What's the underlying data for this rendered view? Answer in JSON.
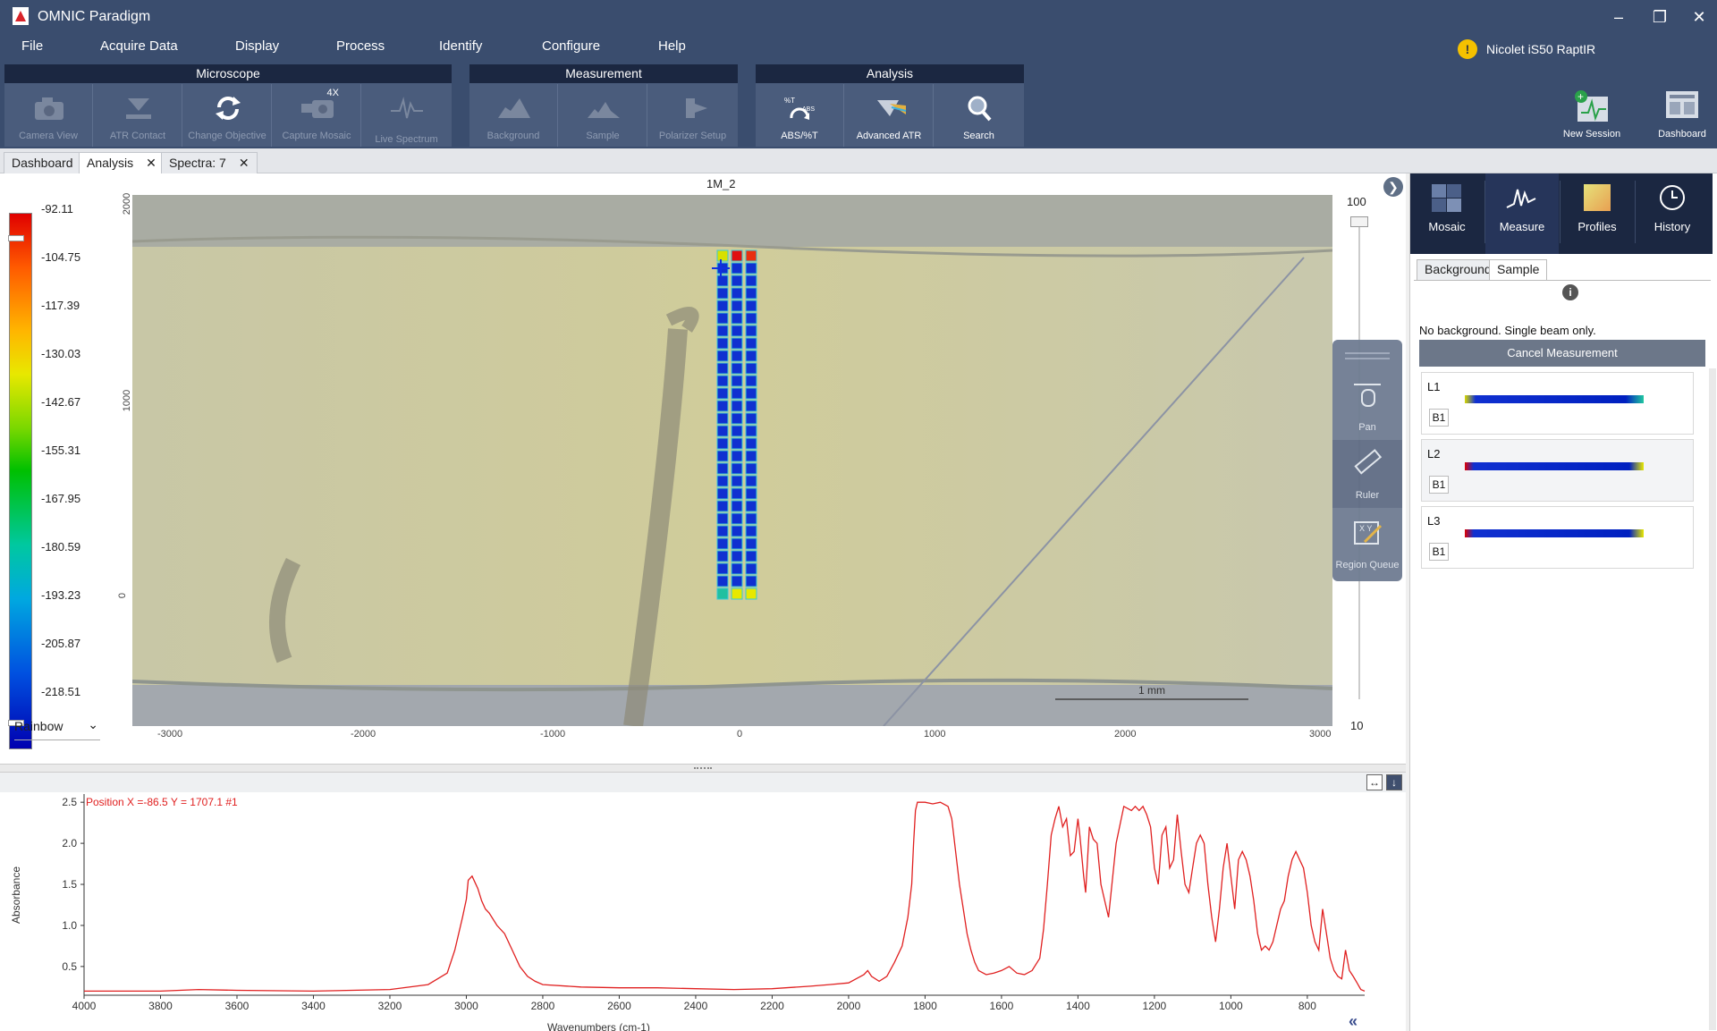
{
  "window": {
    "title": "OMNIC Paradigm"
  },
  "menu": [
    "File",
    "Acquire Data",
    "Display",
    "Process",
    "Identify",
    "Configure",
    "Help"
  ],
  "instrument": {
    "status_icon": "warning-icon",
    "name": "Nicolet iS50 RaptIR"
  },
  "toolbar": {
    "microscope": {
      "title": "Microscope",
      "buttons": [
        "Camera View",
        "ATR Contact",
        "Change Objective",
        "Capture Mosaic",
        "Live Spectrum"
      ],
      "capture_badge": "4X"
    },
    "measurement": {
      "title": "Measurement",
      "buttons": [
        "Background",
        "Sample",
        "Polarizer Setup"
      ]
    },
    "analysis": {
      "title": "Analysis",
      "buttons": [
        "ABS/%T",
        "Advanced ATR",
        "Search"
      ],
      "abs_icon_text_top": "%T",
      "abs_icon_text_bottom": "ABS"
    },
    "right": [
      "New Session",
      "Dashboard"
    ]
  },
  "tabs": [
    "Dashboard",
    "Analysis",
    "Spectra: 7"
  ],
  "map": {
    "title": "1M_2",
    "colorbar_ticks": [
      "-92.11",
      "-104.75",
      "-117.39",
      "-130.03",
      "-142.67",
      "-155.31",
      "-167.95",
      "-180.59",
      "-193.23",
      "-205.87",
      "-218.51"
    ],
    "palette": "Rainbow",
    "x_ticks": [
      "-3000",
      "-2000",
      "-1000",
      "0",
      "1000",
      "2000",
      "3000"
    ],
    "y_ticks": [
      "2000",
      "1000",
      "0"
    ],
    "scale_bar": "1 mm",
    "zoom_max": "100",
    "zoom_min": "10",
    "tools": [
      "Pan",
      "Ruler",
      "Region Queue"
    ]
  },
  "right_panel": {
    "tabs": [
      "Mosaic",
      "Measure",
      "Profiles",
      "History"
    ],
    "subtabs": [
      "Background",
      "Sample"
    ],
    "message": "No background. Single beam only.",
    "cancel": "Cancel Measurement",
    "lines": [
      {
        "name": "L1",
        "badge": "B1"
      },
      {
        "name": "L2",
        "badge": "B1"
      },
      {
        "name": "L3",
        "badge": "B1"
      }
    ]
  },
  "spectrum": {
    "position": "Position X =-86.5 Y = 1707.1 #1",
    "ylabel": "Absorbance",
    "xlabel": "Wavenumbers (cm-1)",
    "y_ticks": [
      "2.5",
      "2.0",
      "1.5",
      "1.0",
      "0.5"
    ],
    "x_ticks": [
      "4000",
      "3800",
      "3600",
      "3400",
      "3200",
      "3000",
      "2800",
      "2600",
      "2400",
      "2200",
      "2000",
      "1800",
      "1600",
      "1400",
      "1200",
      "1000",
      "800"
    ],
    "line_color": "#e02020"
  },
  "chart_data": {
    "type": "line",
    "xlabel": "Wavenumbers (cm-1)",
    "ylabel": "Absorbance",
    "xlim": [
      4000,
      650
    ],
    "ylim": [
      0.15,
      2.6
    ],
    "series": [
      {
        "x": [
          4000,
          3800,
          3700,
          3600,
          3400,
          3200,
          3100,
          3050,
          3030,
          3010,
          3000,
          2995,
          2985,
          2970,
          2960,
          2950,
          2940,
          2920,
          2900,
          2880,
          2860,
          2840,
          2820,
          2800,
          2700,
          2600,
          2500,
          2400,
          2300,
          2200,
          2100,
          2050,
          2000,
          1980,
          1960,
          1950,
          1940,
          1920,
          1900,
          1880,
          1860,
          1845,
          1835,
          1830,
          1825,
          1820,
          1800,
          1780,
          1760,
          1740,
          1730,
          1720,
          1710,
          1700,
          1690,
          1680,
          1670,
          1660,
          1640,
          1620,
          1600,
          1580,
          1560,
          1540,
          1520,
          1500,
          1490,
          1480,
          1470,
          1460,
          1450,
          1440,
          1430,
          1420,
          1410,
          1400,
          1395,
          1385,
          1380,
          1370,
          1360,
          1350,
          1340,
          1320,
          1300,
          1280,
          1260,
          1250,
          1240,
          1230,
          1220,
          1210,
          1200,
          1190,
          1180,
          1170,
          1160,
          1150,
          1140,
          1130,
          1120,
          1110,
          1100,
          1090,
          1080,
          1070,
          1060,
          1050,
          1040,
          1030,
          1020,
          1010,
          1000,
          990,
          980,
          970,
          960,
          950,
          940,
          930,
          920,
          910,
          900,
          890,
          880,
          870,
          860,
          850,
          840,
          830,
          820,
          810,
          800,
          790,
          780,
          770,
          760,
          750,
          740,
          730,
          720,
          710,
          700,
          690,
          680,
          670,
          660,
          650
        ],
        "y": [
          0.2,
          0.2,
          0.22,
          0.21,
          0.2,
          0.22,
          0.28,
          0.42,
          0.7,
          1.1,
          1.32,
          1.55,
          1.6,
          1.45,
          1.3,
          1.2,
          1.15,
          1.0,
          0.9,
          0.7,
          0.5,
          0.38,
          0.32,
          0.28,
          0.25,
          0.24,
          0.24,
          0.23,
          0.22,
          0.23,
          0.26,
          0.28,
          0.3,
          0.35,
          0.4,
          0.45,
          0.38,
          0.32,
          0.38,
          0.55,
          0.75,
          1.1,
          1.5,
          2.0,
          2.4,
          2.5,
          2.5,
          2.48,
          2.5,
          2.45,
          2.3,
          1.9,
          1.5,
          1.2,
          0.9,
          0.7,
          0.55,
          0.45,
          0.4,
          0.42,
          0.45,
          0.5,
          0.42,
          0.4,
          0.45,
          0.6,
          0.95,
          1.5,
          2.1,
          2.3,
          2.45,
          2.2,
          2.3,
          1.85,
          1.9,
          2.3,
          2.1,
          1.6,
          1.4,
          2.2,
          2.05,
          2.0,
          1.5,
          1.1,
          2.0,
          2.45,
          2.4,
          2.45,
          2.4,
          2.45,
          2.35,
          2.2,
          1.7,
          1.5,
          2.1,
          2.2,
          1.7,
          1.8,
          2.35,
          1.9,
          1.5,
          1.4,
          1.7,
          2.0,
          2.1,
          2.0,
          1.5,
          1.1,
          0.8,
          1.2,
          1.7,
          2.0,
          1.6,
          1.2,
          1.8,
          1.9,
          1.8,
          1.6,
          1.3,
          0.9,
          0.7,
          0.75,
          0.7,
          0.8,
          1.0,
          1.2,
          1.3,
          1.6,
          1.8,
          1.9,
          1.8,
          1.7,
          1.4,
          1.0,
          0.8,
          0.7,
          1.2,
          0.9,
          0.6,
          0.45,
          0.38,
          0.35,
          0.7,
          0.45,
          0.38,
          0.3,
          0.22,
          0.2
        ]
      }
    ]
  }
}
